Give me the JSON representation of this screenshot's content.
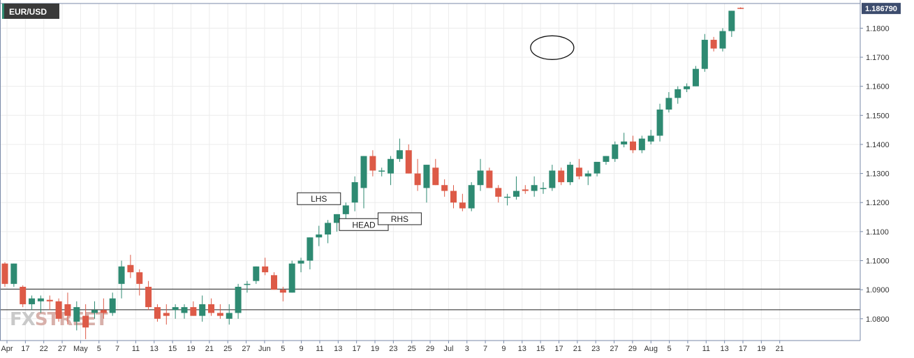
{
  "symbol": "EUR/USD",
  "watermark": {
    "part1": "FX",
    "part2": "STREET"
  },
  "current_price": "1.186790",
  "colors": {
    "bull": "#2e8a72",
    "bear": "#dd5a47",
    "grid": "#ececec",
    "axis_line": "#7a8aa8",
    "badge": "#3d4d6e",
    "symbol_bg": "#3a3a3a",
    "hline": "#222222",
    "ellipse": "#111111"
  },
  "chart_data": {
    "type": "candlestick",
    "x_tick_labels": [
      "Apr",
      "17",
      "22",
      "27",
      "May",
      "5",
      "7",
      "11",
      "13",
      "15",
      "19",
      "21",
      "25",
      "27",
      "Jun",
      "5",
      "9",
      "11",
      "13",
      "17",
      "19",
      "23",
      "25",
      "29",
      "Jul",
      "3",
      "7",
      "9",
      "13",
      "15",
      "17",
      "21",
      "23",
      "27",
      "29",
      "Aug",
      "5",
      "7",
      "11",
      "13",
      "17",
      "19",
      "21"
    ],
    "y_tick_labels": [
      "1.0800",
      "1.0900",
      "1.1000",
      "1.1100",
      "1.1200",
      "1.1300",
      "1.1400",
      "1.1500",
      "1.1600",
      "1.1700",
      "1.1800"
    ],
    "y_range": [
      1.0725,
      1.1885
    ],
    "horizontal_lines": [
      1.0902,
      1.0831
    ],
    "annotations": [
      {
        "text": "LHS",
        "price": 1.1212,
        "candle": 35
      },
      {
        "text": "HEAD",
        "price": 1.1123,
        "candle": 40
      },
      {
        "text": "RHS",
        "price": 1.1143,
        "candle": 44
      }
    ],
    "ellipse": {
      "candle_from": 60,
      "candle_to": 62,
      "price_center": 1.1733
    },
    "candles": [
      [
        1.099,
        1.0995,
        1.091,
        1.092
      ],
      [
        1.092,
        1.099,
        1.091,
        1.099
      ],
      [
        1.091,
        1.0915,
        1.084,
        1.085
      ],
      [
        1.085,
        1.088,
        1.083,
        1.087
      ],
      [
        1.086,
        1.088,
        1.082,
        1.087
      ],
      [
        1.0865,
        1.088,
        1.083,
        1.086
      ],
      [
        1.086,
        1.087,
        1.079,
        1.08
      ],
      [
        1.085,
        1.089,
        1.078,
        1.081
      ],
      [
        1.079,
        1.086,
        1.076,
        1.084
      ],
      [
        1.081,
        1.085,
        1.073,
        1.077
      ],
      [
        1.082,
        1.086,
        1.08,
        1.083
      ],
      [
        1.083,
        1.087,
        1.08,
        1.082
      ],
      [
        1.082,
        1.089,
        1.081,
        1.087
      ],
      [
        1.092,
        1.1,
        1.087,
        1.098
      ],
      [
        1.0985,
        1.102,
        1.094,
        1.096
      ],
      [
        1.096,
        1.097,
        1.088,
        1.092
      ],
      [
        1.091,
        1.093,
        1.083,
        1.084
      ],
      [
        1.084,
        1.085,
        1.079,
        1.08
      ],
      [
        1.082,
        1.085,
        1.078,
        1.081
      ],
      [
        1.083,
        1.085,
        1.08,
        1.084
      ],
      [
        1.082,
        1.085,
        1.08,
        1.084
      ],
      [
        1.084,
        1.086,
        1.081,
        1.081
      ],
      [
        1.081,
        1.088,
        1.079,
        1.085
      ],
      [
        1.085,
        1.087,
        1.081,
        1.082
      ],
      [
        1.082,
        1.085,
        1.08,
        1.081
      ],
      [
        1.08,
        1.085,
        1.078,
        1.082
      ],
      [
        1.082,
        1.092,
        1.08,
        1.091
      ],
      [
        1.092,
        1.093,
        1.089,
        1.092
      ],
      [
        1.093,
        1.098,
        1.092,
        1.098
      ],
      [
        1.098,
        1.101,
        1.095,
        1.096
      ],
      [
        1.095,
        1.096,
        1.09,
        1.09
      ],
      [
        1.09,
        1.091,
        1.086,
        1.089
      ],
      [
        1.089,
        1.1,
        1.089,
        1.099
      ],
      [
        1.099,
        1.101,
        1.096,
        1.1
      ],
      [
        1.1,
        1.108,
        1.097,
        1.108
      ],
      [
        1.108,
        1.112,
        1.105,
        1.109
      ],
      [
        1.109,
        1.114,
        1.106,
        1.113
      ],
      [
        1.113,
        1.116,
        1.11,
        1.116
      ],
      [
        1.116,
        1.12,
        1.114,
        1.119
      ],
      [
        1.12,
        1.129,
        1.117,
        1.127
      ],
      [
        1.125,
        1.136,
        1.118,
        1.136
      ],
      [
        1.136,
        1.138,
        1.129,
        1.131
      ],
      [
        1.131,
        1.132,
        1.129,
        1.131
      ],
      [
        1.13,
        1.136,
        1.126,
        1.135
      ],
      [
        1.135,
        1.142,
        1.134,
        1.138
      ],
      [
        1.138,
        1.14,
        1.13,
        1.13
      ],
      [
        1.13,
        1.135,
        1.124,
        1.126
      ],
      [
        1.125,
        1.133,
        1.12,
        1.133
      ],
      [
        1.132,
        1.135,
        1.126,
        1.126
      ],
      [
        1.126,
        1.128,
        1.122,
        1.124
      ],
      [
        1.124,
        1.126,
        1.118,
        1.12
      ],
      [
        1.12,
        1.123,
        1.117,
        1.118
      ],
      [
        1.118,
        1.127,
        1.117,
        1.126
      ],
      [
        1.126,
        1.135,
        1.124,
        1.131
      ],
      [
        1.131,
        1.132,
        1.125,
        1.125
      ],
      [
        1.125,
        1.126,
        1.12,
        1.122
      ],
      [
        1.122,
        1.123,
        1.119,
        1.122
      ],
      [
        1.122,
        1.129,
        1.121,
        1.124
      ],
      [
        1.1245,
        1.126,
        1.123,
        1.124
      ],
      [
        1.124,
        1.129,
        1.122,
        1.126
      ],
      [
        1.125,
        1.127,
        1.123,
        1.125
      ],
      [
        1.125,
        1.133,
        1.124,
        1.131
      ],
      [
        1.131,
        1.132,
        1.126,
        1.127
      ],
      [
        1.127,
        1.134,
        1.126,
        1.133
      ],
      [
        1.132,
        1.135,
        1.128,
        1.129
      ],
      [
        1.129,
        1.131,
        1.126,
        1.13
      ],
      [
        1.13,
        1.134,
        1.129,
        1.134
      ],
      [
        1.134,
        1.136,
        1.133,
        1.136
      ],
      [
        1.135,
        1.141,
        1.134,
        1.14
      ],
      [
        1.14,
        1.144,
        1.139,
        1.141
      ],
      [
        1.141,
        1.143,
        1.137,
        1.138
      ],
      [
        1.138,
        1.143,
        1.137,
        1.142
      ],
      [
        1.141,
        1.145,
        1.14,
        1.143
      ],
      [
        1.143,
        1.154,
        1.141,
        1.152
      ],
      [
        1.152,
        1.158,
        1.151,
        1.156
      ],
      [
        1.156,
        1.16,
        1.154,
        1.159
      ],
      [
        1.159,
        1.161,
        1.158,
        1.16
      ],
      [
        1.16,
        1.167,
        1.16,
        1.166
      ],
      [
        1.166,
        1.178,
        1.165,
        1.176
      ],
      [
        1.176,
        1.177,
        1.172,
        1.173
      ],
      [
        1.173,
        1.18,
        1.172,
        1.179
      ],
      [
        1.179,
        1.186,
        1.177,
        1.186
      ],
      [
        1.187,
        1.1872,
        1.1866,
        1.1868
      ]
    ]
  }
}
